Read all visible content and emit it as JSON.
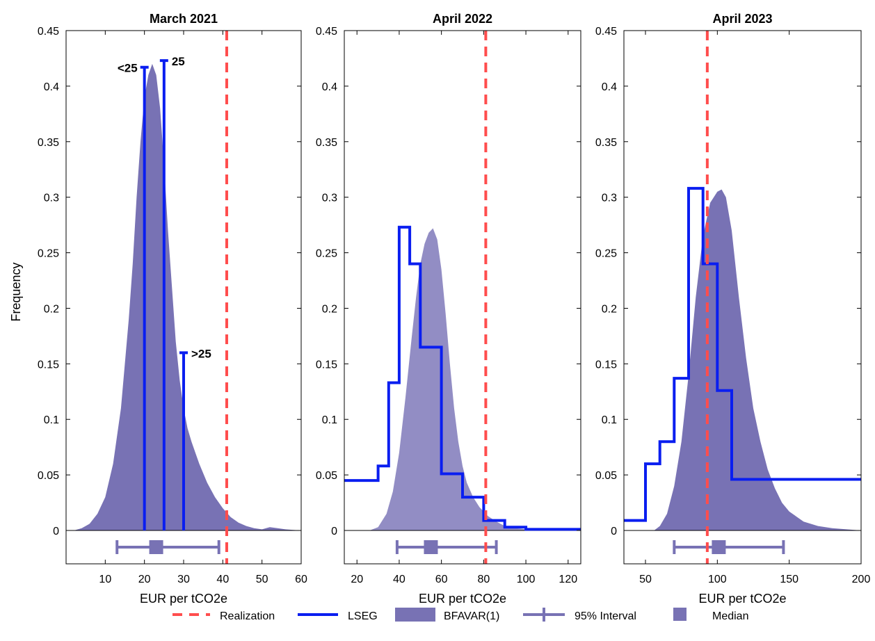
{
  "figure": {
    "ylabel": "Frequency",
    "xlabel": "EUR per tCO2e"
  },
  "legend": {
    "placement": "bottom-center",
    "items": [
      {
        "label": "Realization",
        "kind": "dashed-line",
        "color": "#ff4d4d"
      },
      {
        "label": "LSEG",
        "kind": "line",
        "color": "#0a1ef0"
      },
      {
        "label": "BFAVAR(1)",
        "kind": "patch",
        "color": "#7872b4"
      },
      {
        "label": "95% Interval",
        "kind": "errorbar",
        "color": "#7872b4"
      },
      {
        "label": "Median",
        "kind": "square",
        "color": "#7872b4"
      }
    ]
  },
  "colors": {
    "density_dark": "#7872b4",
    "density_light": "#928dc4",
    "lseg": "#0a1ef0",
    "realization": "#ff4d4d",
    "interval": "#7872b4"
  },
  "chart_data": [
    {
      "type": "area",
      "title": "March 2021",
      "xlabel": "EUR per tCO2e",
      "ylabel": "Frequency",
      "xlim": [
        0,
        60
      ],
      "ylim": [
        0,
        0.45
      ],
      "xticks": [
        10,
        20,
        30,
        40,
        50,
        60
      ],
      "yticks": [
        0,
        0.05,
        0.1,
        0.15,
        0.2,
        0.25,
        0.3,
        0.35,
        0.4,
        0.45
      ],
      "ytick_labels": [
        "0",
        "0.05",
        "0.1",
        "0.15",
        "0.2",
        "0.25",
        "0.3",
        "0.35",
        "0.4",
        "0.45"
      ],
      "grid": false,
      "density": {
        "name": "BFAVAR(1)",
        "x": [
          2,
          4,
          6,
          8,
          10,
          12,
          14,
          16,
          17,
          18,
          19,
          20,
          21,
          22,
          23,
          24,
          25,
          26,
          27,
          28,
          29,
          30,
          31,
          32,
          33,
          34,
          36,
          38,
          40,
          42,
          44,
          46,
          48,
          50,
          52,
          54,
          56,
          58,
          60
        ],
        "y": [
          0,
          0.002,
          0.006,
          0.015,
          0.03,
          0.06,
          0.11,
          0.19,
          0.24,
          0.3,
          0.35,
          0.39,
          0.41,
          0.42,
          0.41,
          0.38,
          0.33,
          0.27,
          0.22,
          0.17,
          0.135,
          0.11,
          0.092,
          0.08,
          0.07,
          0.06,
          0.043,
          0.03,
          0.02,
          0.012,
          0.007,
          0.004,
          0.002,
          0.001,
          0.003,
          0.002,
          0.001,
          0.0005,
          0
        ]
      },
      "lseg_stems": [
        {
          "label": "<25",
          "x": 20,
          "y": 0.417
        },
        {
          "label": "25",
          "x": 25,
          "y": 0.423
        },
        {
          "label": ">25",
          "x": 30,
          "y": 0.16
        }
      ],
      "realization": 41,
      "interval": {
        "low": 13,
        "high": 39,
        "median": 23
      }
    },
    {
      "type": "area",
      "title": "April 2022",
      "xlabel": "EUR per tCO2e",
      "ylabel": "",
      "xlim": [
        14,
        126
      ],
      "ylim": [
        0,
        0.45
      ],
      "xticks": [
        20,
        40,
        60,
        80,
        100,
        120
      ],
      "yticks": [
        0,
        0.05,
        0.1,
        0.15,
        0.2,
        0.25,
        0.3,
        0.35,
        0.4,
        0.45
      ],
      "ytick_labels": [
        "0",
        "0.05",
        "0.1",
        "0.15",
        "0.2",
        "0.25",
        "0.3",
        "0.35",
        "0.4",
        "0.45"
      ],
      "grid": false,
      "density": {
        "name": "BFAVAR(1)",
        "x": [
          26,
          30,
          34,
          37,
          40,
          43,
          46,
          48,
          50,
          52,
          54,
          56,
          58,
          60,
          62,
          64,
          66,
          68,
          70,
          72,
          75,
          78,
          82,
          86,
          90,
          95,
          100,
          110,
          126
        ],
        "y": [
          0,
          0.003,
          0.015,
          0.035,
          0.07,
          0.12,
          0.175,
          0.21,
          0.24,
          0.258,
          0.268,
          0.272,
          0.262,
          0.235,
          0.195,
          0.15,
          0.11,
          0.08,
          0.058,
          0.043,
          0.03,
          0.021,
          0.013,
          0.008,
          0.004,
          0.002,
          0.001,
          0,
          0
        ]
      },
      "lseg_steps": {
        "name": "LSEG",
        "edges": [
          14,
          30,
          35,
          40,
          45,
          50,
          60,
          70,
          80,
          90,
          100,
          126
        ],
        "values": [
          0.045,
          0.058,
          0.133,
          0.273,
          0.24,
          0.165,
          0.051,
          0.03,
          0.009,
          0.003,
          0.001
        ]
      },
      "realization": 81,
      "interval": {
        "low": 39,
        "high": 86,
        "median": 55
      }
    },
    {
      "type": "area",
      "title": "April 2023",
      "xlabel": "EUR per tCO2e",
      "ylabel": "",
      "xlim": [
        35,
        200
      ],
      "ylim": [
        0,
        0.45
      ],
      "xticks": [
        50,
        100,
        150,
        200
      ],
      "yticks": [
        0,
        0.05,
        0.1,
        0.15,
        0.2,
        0.25,
        0.3,
        0.35,
        0.4,
        0.45
      ],
      "ytick_labels": [
        "0",
        "0.05",
        "0.1",
        "0.15",
        "0.2",
        "0.25",
        "0.3",
        "0.35",
        "0.4",
        "0.45"
      ],
      "grid": false,
      "density": {
        "name": "BFAVAR(1)",
        "x": [
          56,
          60,
          65,
          70,
          75,
          80,
          85,
          90,
          95,
          100,
          103,
          106,
          110,
          115,
          120,
          125,
          130,
          135,
          140,
          145,
          150,
          160,
          170,
          180,
          190,
          200
        ],
        "y": [
          0,
          0.004,
          0.015,
          0.04,
          0.08,
          0.14,
          0.21,
          0.265,
          0.295,
          0.305,
          0.307,
          0.3,
          0.27,
          0.21,
          0.155,
          0.11,
          0.08,
          0.055,
          0.038,
          0.025,
          0.017,
          0.008,
          0.004,
          0.002,
          0.001,
          0
        ]
      },
      "lseg_steps": {
        "name": "LSEG",
        "edges": [
          35,
          50,
          60,
          70,
          80,
          90,
          100,
          110,
          200
        ],
        "values": [
          0.009,
          0.06,
          0.08,
          0.137,
          0.308,
          0.24,
          0.126,
          0.046
        ]
      },
      "realization": 93,
      "interval": {
        "low": 70,
        "high": 146,
        "median": 101
      }
    }
  ]
}
